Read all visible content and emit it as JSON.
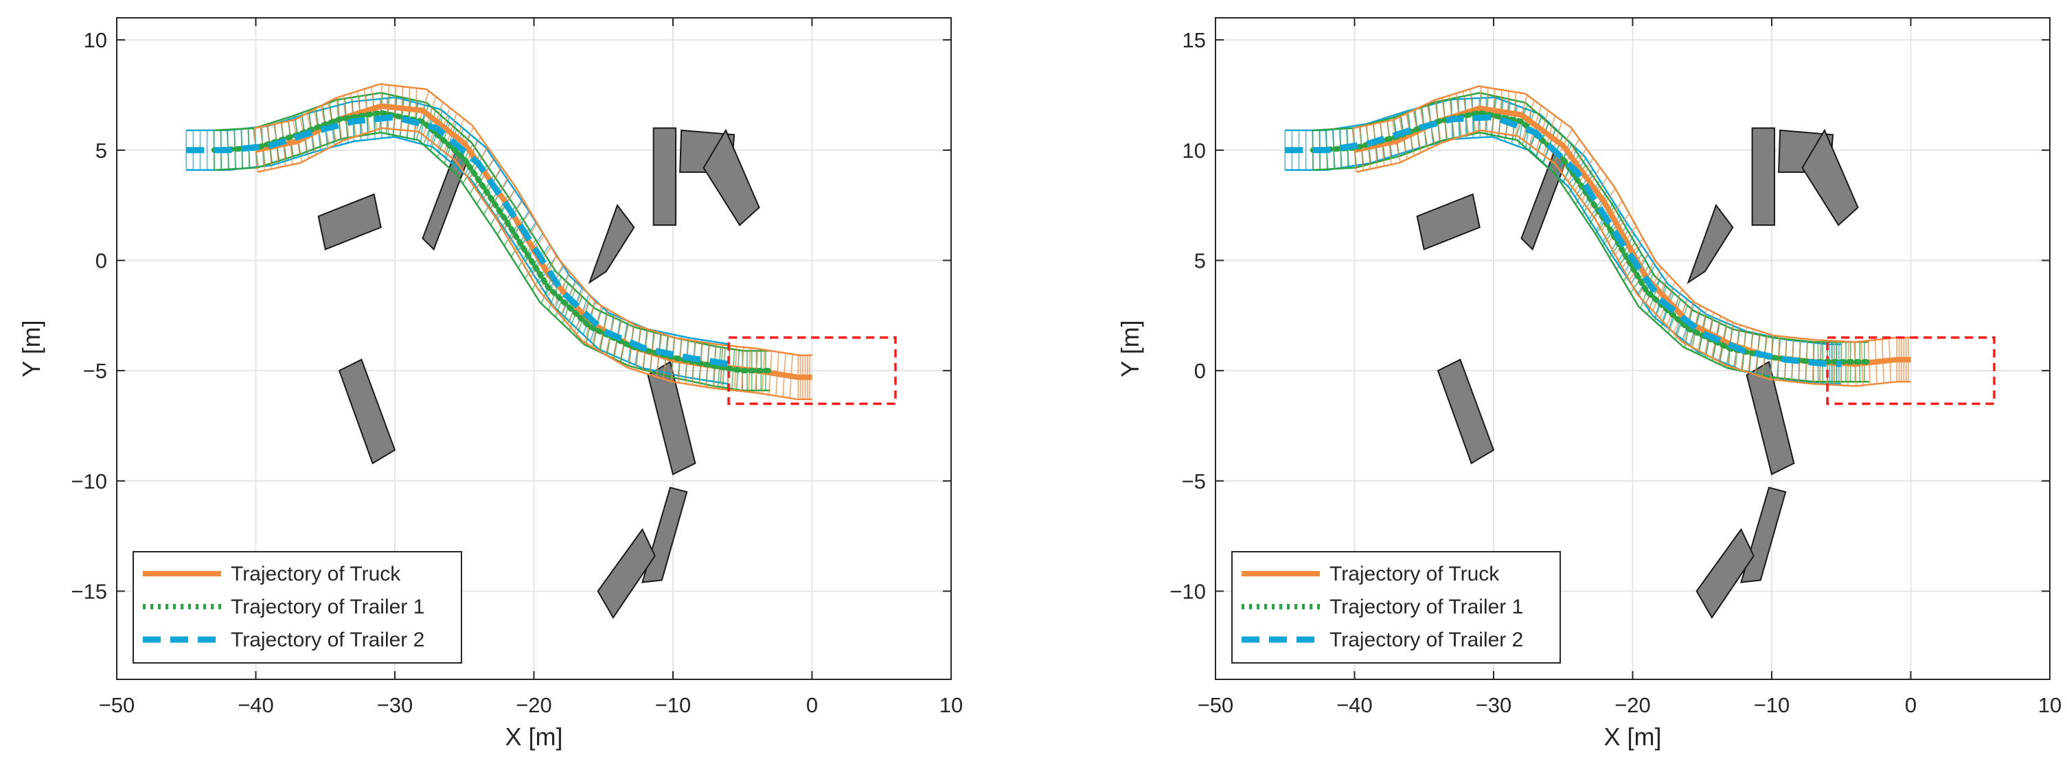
{
  "figure": {
    "plot_left": "left-panel",
    "plot_right": "right-panel"
  },
  "colors": {
    "truck": "#f08a3c",
    "trailer1": "#2ca444",
    "trailer2": "#0fa5d6",
    "obstacle_fill": "#808080",
    "obstacle_edge": "#1a1a1a",
    "target_box": "#ff1a1a",
    "grid": "#e4e4e4",
    "axis": "#262626"
  },
  "chart_data": [
    {
      "type": "line",
      "title": "",
      "xlabel": "X [m]",
      "ylabel": "Y [m]",
      "xlim": [
        -50,
        10
      ],
      "ylim": [
        -19,
        11
      ],
      "xticks": [
        -50,
        -40,
        -30,
        -20,
        -10,
        0,
        10
      ],
      "yticks": [
        -15,
        -10,
        -5,
        0,
        5,
        10
      ],
      "xtick_labels": [
        "−50",
        "−40",
        "−30",
        "−20",
        "−10",
        "0",
        "10"
      ],
      "ytick_labels": [
        "−15",
        "−10",
        "−5",
        "0",
        "5",
        "10"
      ],
      "grid": true,
      "legend": {
        "placement": "bottom-left",
        "entries": [
          "Trajectory of Truck",
          "Trajectory of Trailer 1",
          "Trajectory of Trailer 2"
        ]
      },
      "series": [
        {
          "name": "Trajectory of Truck",
          "x": [
            -40,
            -37,
            -34,
            -31,
            -28,
            -25,
            -22,
            -19,
            -16,
            -13,
            -10,
            -7,
            -4,
            -1,
            0
          ],
          "y": [
            5,
            5.4,
            6.4,
            7.0,
            6.8,
            5.3,
            2.6,
            -0.6,
            -2.8,
            -3.9,
            -4.5,
            -4.8,
            -5.0,
            -5.3,
            -5.3
          ]
        },
        {
          "name": "Trajectory of Trailer 1",
          "x": [
            -43,
            -40,
            -37,
            -34,
            -31,
            -28,
            -25,
            -22,
            -19,
            -16,
            -13,
            -10,
            -7,
            -5,
            -3
          ],
          "y": [
            5,
            5.1,
            5.7,
            6.4,
            6.7,
            6.3,
            4.6,
            1.8,
            -1.2,
            -3.0,
            -3.9,
            -4.4,
            -4.8,
            -5.0,
            -5.0
          ]
        },
        {
          "name": "Trajectory of Trailer 2",
          "x": [
            -45,
            -42,
            -39,
            -36,
            -33,
            -30,
            -27,
            -24,
            -21,
            -18,
            -15,
            -12,
            -9,
            -6
          ],
          "y": [
            5,
            5.0,
            5.2,
            5.8,
            6.3,
            6.5,
            6.0,
            4.4,
            1.6,
            -1.4,
            -3.2,
            -4.0,
            -4.4,
            -4.7
          ]
        }
      ],
      "target_region": {
        "x": [
          -6,
          6
        ],
        "y": [
          -6.5,
          -3.5
        ]
      },
      "obstacles": [
        [
          [
            -35,
            0.5
          ],
          [
            -31,
            1.5
          ],
          [
            -31.5,
            3
          ],
          [
            -35.5,
            2
          ]
        ],
        [
          [
            -28,
            1
          ],
          [
            -27.2,
            0.5
          ],
          [
            -24.8,
            4.5
          ],
          [
            -25.6,
            5
          ]
        ],
        [
          [
            -16,
            -1
          ],
          [
            -14.8,
            -0.5
          ],
          [
            -12.8,
            1.5
          ],
          [
            -14,
            2.5
          ]
        ],
        [
          [
            -11.4,
            1.6
          ],
          [
            -9.8,
            1.6
          ],
          [
            -9.8,
            6
          ],
          [
            -11.4,
            6
          ]
        ],
        [
          [
            -9.5,
            4
          ],
          [
            -5.8,
            4
          ],
          [
            -5.6,
            5.7
          ],
          [
            -9.4,
            5.9
          ]
        ],
        [
          [
            -7.8,
            4.2
          ],
          [
            -6.2,
            5.9
          ],
          [
            -3.8,
            2.4
          ],
          [
            -5.2,
            1.6
          ]
        ],
        [
          [
            -34,
            -5
          ],
          [
            -32.4,
            -4.5
          ],
          [
            -30,
            -8.6
          ],
          [
            -31.6,
            -9.2
          ]
        ],
        [
          [
            -11.8,
            -5.2
          ],
          [
            -10.2,
            -4.6
          ],
          [
            -8.4,
            -9.2
          ],
          [
            -10,
            -9.7
          ]
        ],
        [
          [
            -12.2,
            -14.6
          ],
          [
            -10.8,
            -14.5
          ],
          [
            -9,
            -10.5
          ],
          [
            -10.2,
            -10.3
          ]
        ],
        [
          [
            -15.4,
            -15
          ],
          [
            -14.3,
            -16.2
          ],
          [
            -11.3,
            -13.4
          ],
          [
            -12.2,
            -12.2
          ]
        ]
      ]
    },
    {
      "type": "line",
      "title": "",
      "xlabel": "X [m]",
      "ylabel": "Y [m]",
      "xlim": [
        -50,
        10
      ],
      "ylim": [
        -14,
        16
      ],
      "xticks": [
        -50,
        -40,
        -30,
        -20,
        -10,
        0,
        10
      ],
      "yticks": [
        -10,
        -5,
        0,
        5,
        10,
        15
      ],
      "xtick_labels": [
        "−50",
        "−40",
        "−30",
        "−20",
        "−10",
        "0",
        "10"
      ],
      "ytick_labels": [
        "−10",
        "−5",
        "0",
        "5",
        "10",
        "15"
      ],
      "grid": true,
      "legend": {
        "placement": "bottom-left",
        "entries": [
          "Trajectory of Truck",
          "Trajectory of Trailer 1",
          "Trajectory of Trailer 2"
        ]
      },
      "series": [
        {
          "name": "Trajectory of Truck",
          "x": [
            -40,
            -37,
            -34,
            -31,
            -28,
            -25,
            -22,
            -19,
            -16,
            -13,
            -10,
            -7,
            -4,
            -1,
            0
          ],
          "y": [
            10,
            10.4,
            11.3,
            11.9,
            11.6,
            10.2,
            7.6,
            4.2,
            2.2,
            1.2,
            0.6,
            0.4,
            0.3,
            0.5,
            0.5
          ]
        },
        {
          "name": "Trajectory of Trailer 1",
          "x": [
            -43,
            -40,
            -37,
            -34,
            -31,
            -28,
            -25,
            -22,
            -19,
            -16,
            -13,
            -10,
            -7,
            -5,
            -3
          ],
          "y": [
            10,
            10.1,
            10.6,
            11.3,
            11.7,
            11.3,
            9.6,
            6.8,
            3.6,
            1.9,
            1.0,
            0.6,
            0.4,
            0.4,
            0.4
          ]
        },
        {
          "name": "Trajectory of Trailer 2",
          "x": [
            -45,
            -42,
            -39,
            -36,
            -33,
            -30,
            -27,
            -24,
            -21,
            -18,
            -15,
            -12,
            -9,
            -6,
            -5
          ],
          "y": [
            10,
            10.0,
            10.3,
            10.9,
            11.4,
            11.5,
            10.8,
            9.0,
            6.0,
            3.2,
            1.7,
            0.9,
            0.5,
            0.3,
            0.3
          ]
        }
      ],
      "target_region": {
        "x": [
          -6,
          6
        ],
        "y": [
          -1.5,
          1.5
        ]
      },
      "obstacles": [
        [
          [
            -35,
            5.5
          ],
          [
            -31,
            6.5
          ],
          [
            -31.5,
            8
          ],
          [
            -35.5,
            7
          ]
        ],
        [
          [
            -28,
            6
          ],
          [
            -27.2,
            5.5
          ],
          [
            -24.8,
            9.5
          ],
          [
            -25.6,
            10
          ]
        ],
        [
          [
            -16,
            4
          ],
          [
            -14.8,
            4.5
          ],
          [
            -12.8,
            6.5
          ],
          [
            -14,
            7.5
          ]
        ],
        [
          [
            -11.4,
            6.6
          ],
          [
            -9.8,
            6.6
          ],
          [
            -9.8,
            11
          ],
          [
            -11.4,
            11
          ]
        ],
        [
          [
            -9.5,
            9
          ],
          [
            -5.8,
            9
          ],
          [
            -5.6,
            10.7
          ],
          [
            -9.4,
            10.9
          ]
        ],
        [
          [
            -7.8,
            9.2
          ],
          [
            -6.2,
            10.9
          ],
          [
            -3.8,
            7.4
          ],
          [
            -5.2,
            6.6
          ]
        ],
        [
          [
            -34,
            0
          ],
          [
            -32.4,
            0.5
          ],
          [
            -30,
            -3.6
          ],
          [
            -31.6,
            -4.2
          ]
        ],
        [
          [
            -11.8,
            -0.2
          ],
          [
            -10.2,
            0.4
          ],
          [
            -8.4,
            -4.2
          ],
          [
            -10,
            -4.7
          ]
        ],
        [
          [
            -12.2,
            -9.6
          ],
          [
            -10.8,
            -9.5
          ],
          [
            -9,
            -5.5
          ],
          [
            -10.2,
            -5.3
          ]
        ],
        [
          [
            -15.4,
            -10
          ],
          [
            -14.3,
            -11.2
          ],
          [
            -11.3,
            -8.4
          ],
          [
            -12.2,
            -7.2
          ]
        ]
      ]
    }
  ]
}
